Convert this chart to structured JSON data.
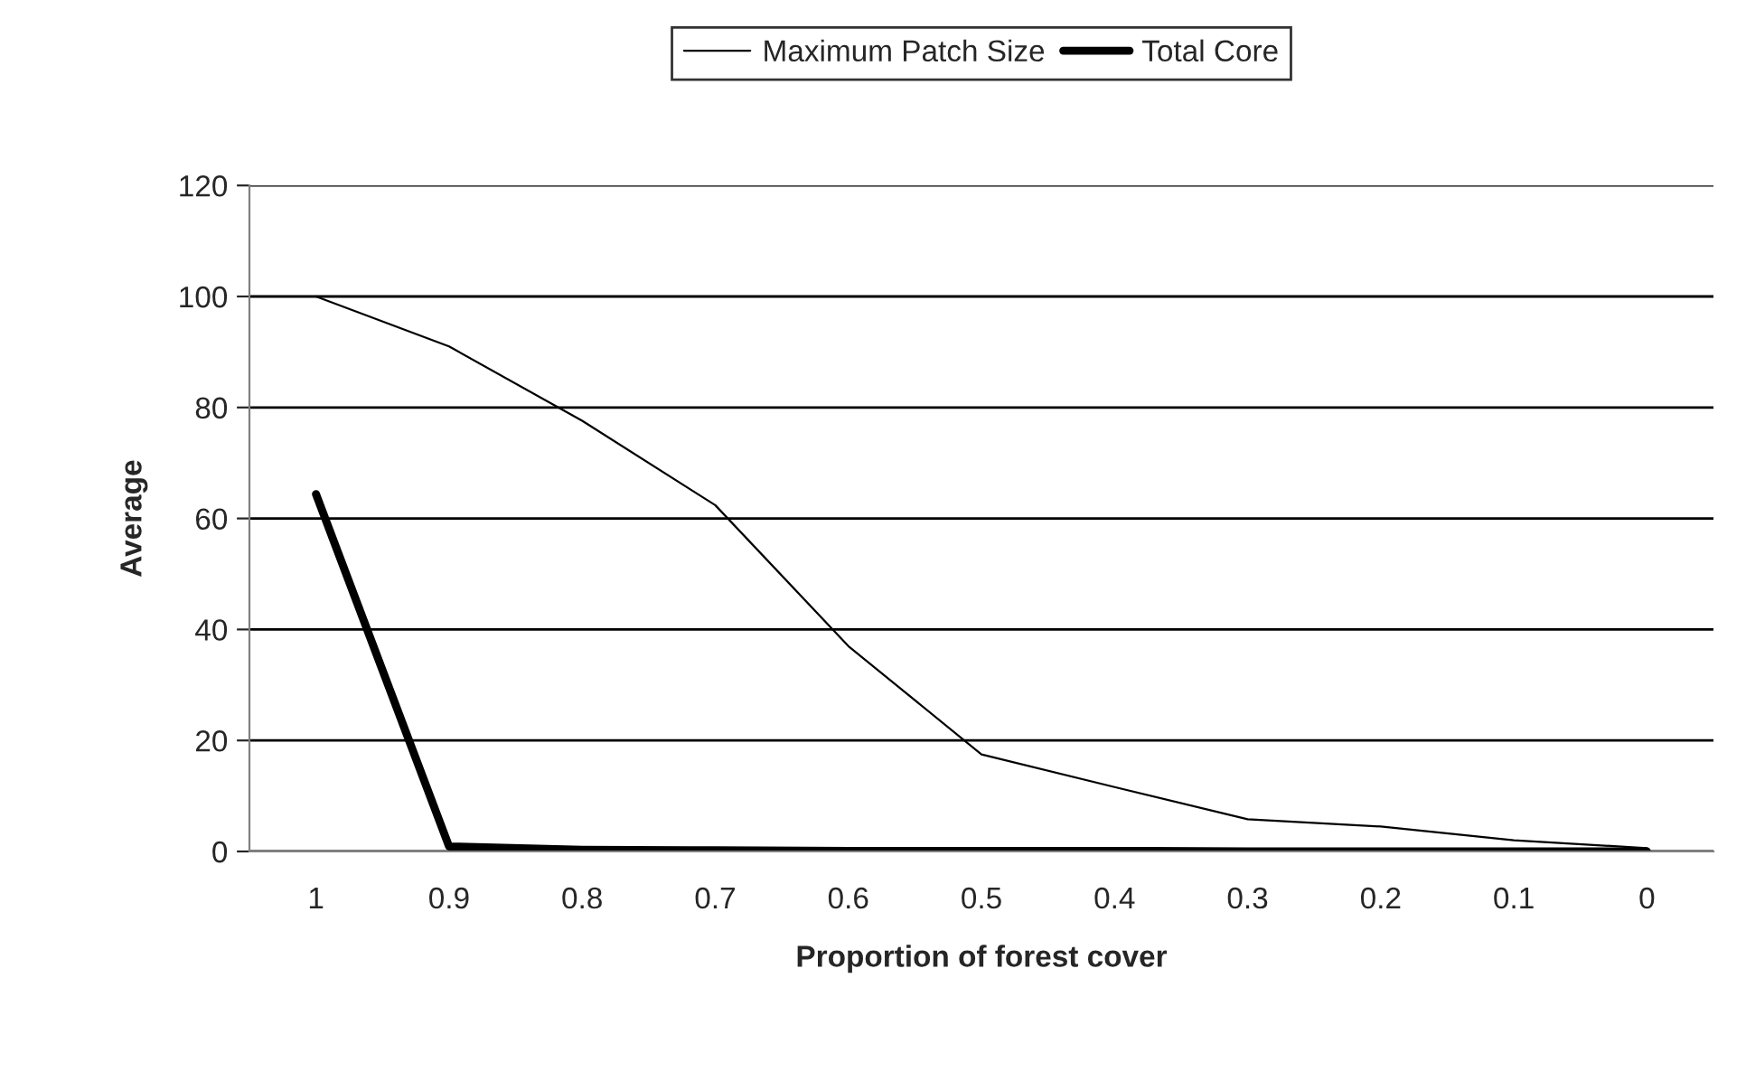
{
  "chart_data": {
    "type": "line",
    "xlabel": "Proportion of forest cover",
    "ylabel": "Average",
    "categories": [
      "1",
      "0.9",
      "0.8",
      "0.7",
      "0.6",
      "0.5",
      "0.4",
      "0.3",
      "0.2",
      "0.1",
      "0"
    ],
    "series": [
      {
        "name": "Maximum Patch Size",
        "color": "#000000",
        "values": [
          100,
          91,
          77.6,
          62.4,
          37,
          17.5,
          11.6,
          5.8,
          4.5,
          2,
          0.6
        ]
      },
      {
        "name": "Total Core",
        "color": "#000000",
        "values": [
          64.4,
          0.9,
          0.3,
          0.2,
          0.1,
          0.1,
          0.1,
          0,
          0,
          0,
          0
        ]
      }
    ],
    "ylim": [
      0,
      120
    ],
    "yticks": [
      0,
      20,
      40,
      60,
      80,
      100,
      120
    ],
    "grid": "y",
    "legend": "top",
    "marker": "none",
    "line_style": "solid"
  }
}
